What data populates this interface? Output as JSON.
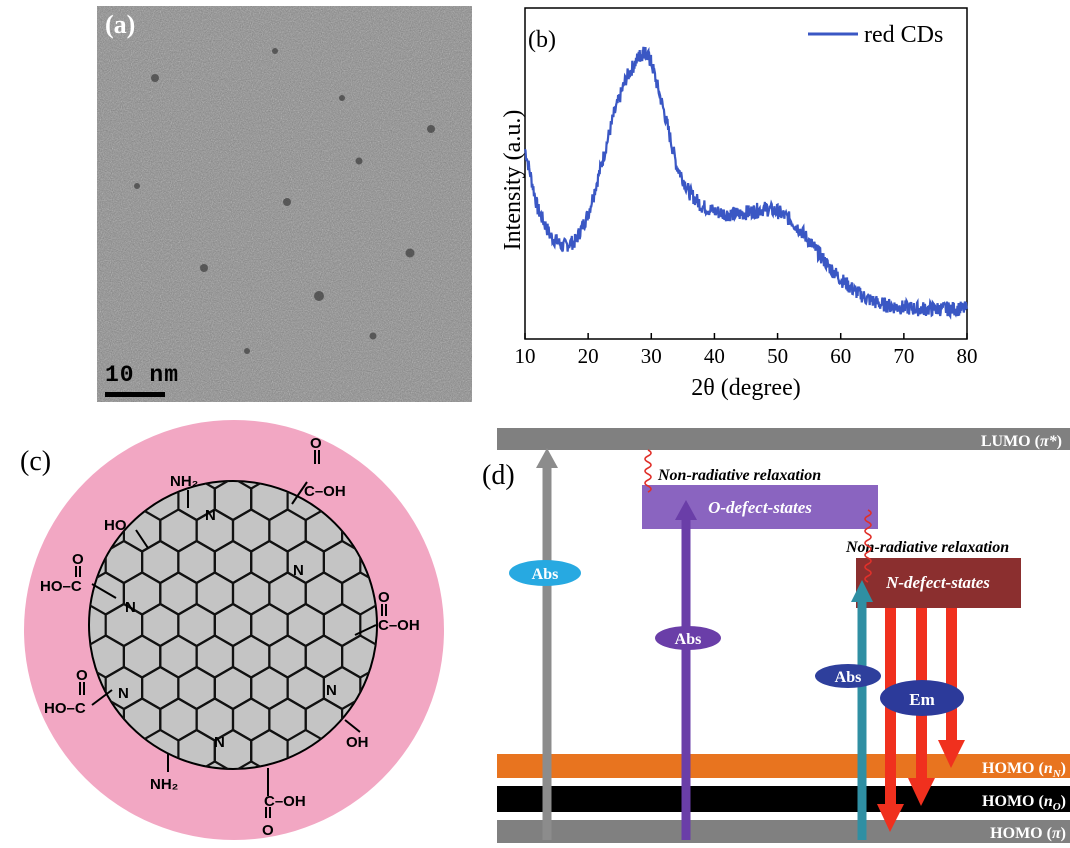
{
  "panel_a": {
    "label": "(a)",
    "scale_bar": "10 nm"
  },
  "chart_data": {
    "type": "line",
    "panel_label": "(b)",
    "xlabel": "2θ (degree)",
    "ylabel": "Intensity (a.u.)",
    "xlim": [
      10,
      80
    ],
    "xticks": [
      "10",
      "20",
      "30",
      "40",
      "50",
      "60",
      "70",
      "80"
    ],
    "yticks_shown": false,
    "legend_position": "top-right",
    "series": [
      {
        "name": "red CDs",
        "color": "#3a57c4",
        "x": [
          10,
          12,
          14,
          16,
          18,
          20,
          22,
          24,
          26,
          28,
          29,
          30,
          32,
          34,
          36,
          38,
          40,
          42,
          44,
          46,
          48,
          50,
          52,
          54,
          56,
          58,
          60,
          62,
          64,
          66,
          68,
          70,
          72,
          74,
          76,
          78,
          80
        ],
        "y": [
          0.62,
          0.4,
          0.3,
          0.26,
          0.28,
          0.38,
          0.55,
          0.74,
          0.88,
          0.96,
          0.98,
          0.94,
          0.76,
          0.56,
          0.46,
          0.41,
          0.39,
          0.38,
          0.38,
          0.39,
          0.4,
          0.39,
          0.36,
          0.31,
          0.25,
          0.19,
          0.14,
          0.1,
          0.07,
          0.05,
          0.04,
          0.035,
          0.03,
          0.03,
          0.03,
          0.03,
          0.03
        ]
      }
    ]
  },
  "panel_c": {
    "label": "(c)",
    "groups": [
      "NH₂",
      "C–OH",
      "O",
      "HO",
      "HO–C",
      "N",
      "OH",
      "NH₂",
      "HO–C",
      "C–OH"
    ]
  },
  "panel_d": {
    "label": "(d)",
    "levels": {
      "lumo": "LUMO (π*)",
      "homo_n": "HOMO (nN)",
      "homo_o": "HOMO (nO)",
      "homo_pi": "HOMO (π)"
    },
    "lumo_label_main": "LUMO (",
    "lumo_label_sym": "π*",
    "homo_n_main": "HOMO (",
    "homo_n_sym": "n",
    "homo_n_sub": "N",
    "homo_o_main": "HOMO (",
    "homo_o_sym": "n",
    "homo_o_sub": "O",
    "homo_pi_main": "HOMO (",
    "homo_pi_sym": "π",
    "close_paren": ")",
    "o_defect": "O-defect-states",
    "n_defect": "N-defect-states",
    "nonrad_1": "Non-radiative relaxation",
    "nonrad_2": "Non-radiative relaxation",
    "abs_1": "Abs",
    "abs_2": "Abs",
    "abs_3": "Abs",
    "em": "Em",
    "colors": {
      "level_gray": "#808080",
      "homo_n": "#e8741f",
      "homo_o": "#000000",
      "o_defect": "#8a64c0",
      "n_defect": "#8b2f2f",
      "arrow_gray": "#8c8c8c",
      "arrow_purple": "#6a3ea8",
      "arrow_teal": "#2f8fa3",
      "arrow_red": "#f0301e",
      "abs_cyan": "#27a9e1",
      "abs_purple": "#6a3ea8",
      "abs_navy": "#2e3f9c",
      "em_blue": "#2c3a9a"
    }
  }
}
